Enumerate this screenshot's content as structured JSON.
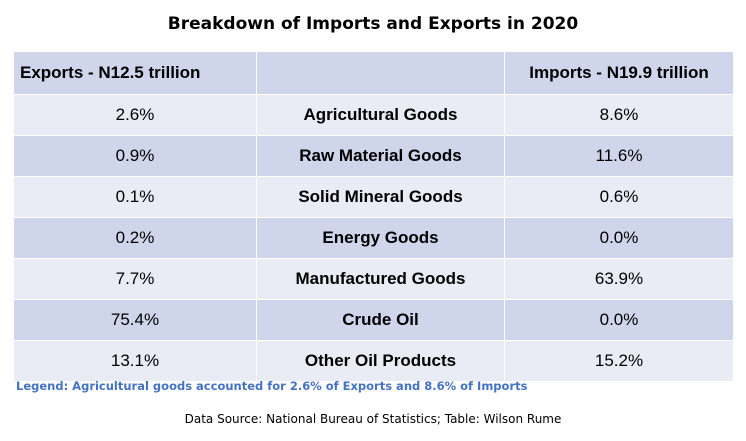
{
  "title": "Breakdown of Imports and Exports in 2020",
  "headers": {
    "exports": "Exports - N12.5 trillion",
    "category": "",
    "imports": "Imports - N19.9 trillion"
  },
  "rows": [
    {
      "exports": "2.6%",
      "category": "Agricultural Goods",
      "imports": "8.6%"
    },
    {
      "exports": "0.9%",
      "category": "Raw Material Goods",
      "imports": "11.6%"
    },
    {
      "exports": "0.1%",
      "category": "Solid Mineral Goods",
      "imports": "0.6%"
    },
    {
      "exports": "0.2%",
      "category": "Energy Goods",
      "imports": "0.0%"
    },
    {
      "exports": "7.7%",
      "category": "Manufactured Goods",
      "imports": "63.9%"
    },
    {
      "exports": "75.4%",
      "category": "Crude Oil",
      "imports": "0.0%"
    },
    {
      "exports": "13.1%",
      "category": "Other Oil Products",
      "imports": "15.2%"
    }
  ],
  "legend": "Legend: Agricultural goods accounted for 2.6% of Exports and 8.6% of Imports",
  "source": "Data Source: National Bureau of Statistics; Table: Wilson Rume",
  "colors": {
    "header_bg": "#cfd5ea",
    "row_light": "#e9ebf5",
    "row_dark": "#cfd5ea",
    "legend_text": "#4472c4"
  }
}
